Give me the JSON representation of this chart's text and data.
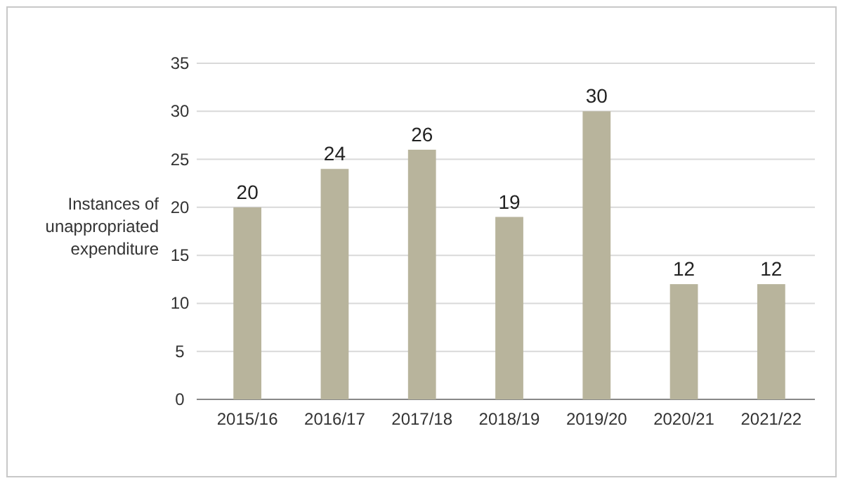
{
  "chart_data": {
    "type": "bar",
    "ylabel": "Instances of unappropriated expenditure",
    "categories": [
      "2015/16",
      "2016/17",
      "2017/18",
      "2018/19",
      "2019/20",
      "2020/21",
      "2021/22"
    ],
    "values": [
      20,
      24,
      26,
      19,
      30,
      12,
      12
    ],
    "color": "#b8b49c",
    "ylim": [
      0,
      35
    ],
    "yticks": [
      0,
      5,
      10,
      15,
      20,
      25,
      30,
      35
    ],
    "grid": "y",
    "data_labels": true
  }
}
